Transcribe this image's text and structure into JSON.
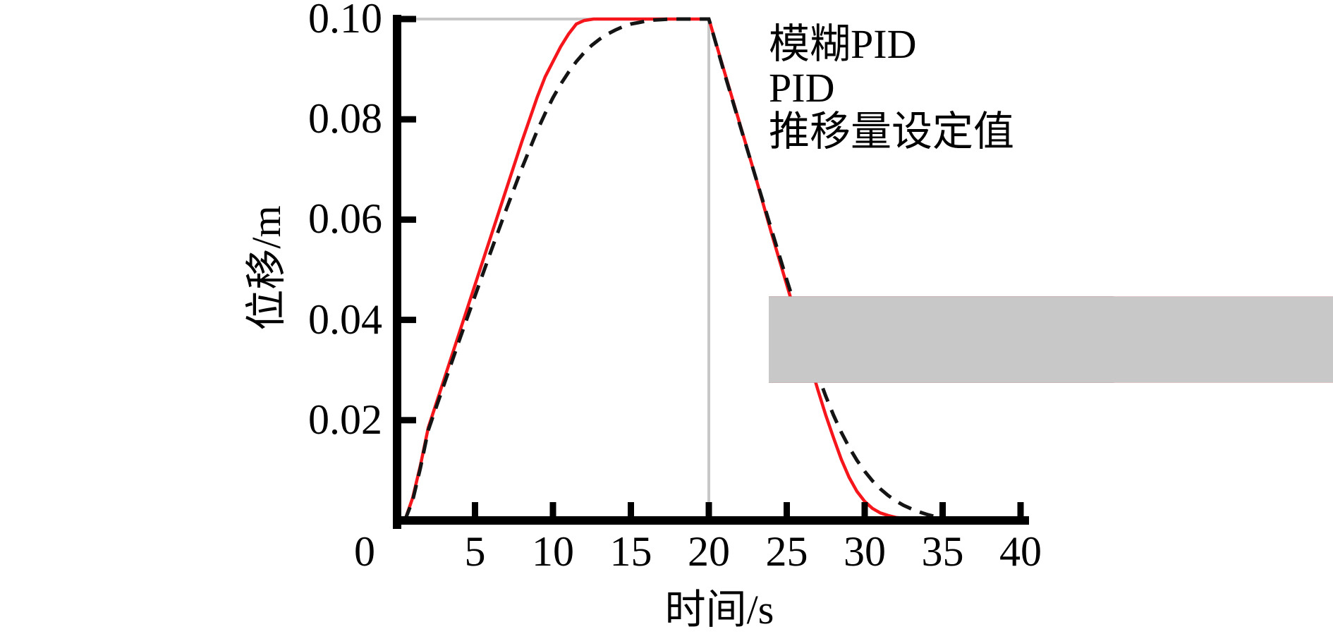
{
  "figure": {
    "background": "#ffffff",
    "text_color": "#000000"
  },
  "axes": {
    "x_title": "时间/s",
    "y_title": "位移/m",
    "x_ticks": [
      {
        "value": 0,
        "label": "0",
        "dx": -46
      },
      {
        "value": 5,
        "label": "5"
      },
      {
        "value": 10,
        "label": "10"
      },
      {
        "value": 15,
        "label": "15"
      },
      {
        "value": 20,
        "label": "20"
      },
      {
        "value": 25,
        "label": "25"
      },
      {
        "value": 30,
        "label": "30"
      },
      {
        "value": 35,
        "label": "35"
      },
      {
        "value": 40,
        "label": "40"
      }
    ],
    "y_ticks": [
      {
        "value": 0.02,
        "label": "0.02"
      },
      {
        "value": 0.04,
        "label": "0.04"
      },
      {
        "value": 0.06,
        "label": "0.06"
      },
      {
        "value": 0.08,
        "label": "0.08"
      },
      {
        "value": 0.1,
        "label": "0.10"
      }
    ]
  },
  "chart_data": {
    "type": "line",
    "title": "",
    "xlabel": "时间/s",
    "ylabel": "位移/m",
    "xlim": [
      0,
      40
    ],
    "ylim": [
      0,
      0.1
    ],
    "x_tick_values": [
      0,
      5,
      10,
      15,
      20,
      25,
      30,
      35,
      40
    ],
    "y_tick_values": [
      0.02,
      0.04,
      0.06,
      0.08,
      0.1
    ],
    "grid": false,
    "legend_position": "upper right",
    "series": [
      {
        "key": "fuzzy-pid",
        "name": "模糊PID",
        "color": "#f5151b",
        "style": "solid",
        "line_width": 4.5,
        "points": [
          [
            0.5,
            0
          ],
          [
            1,
            0.0045
          ],
          [
            1.5,
            0.011
          ],
          [
            2,
            0.0185
          ],
          [
            3,
            0.028
          ],
          [
            4,
            0.0375
          ],
          [
            5,
            0.047
          ],
          [
            6,
            0.0565
          ],
          [
            7,
            0.066
          ],
          [
            8,
            0.0755
          ],
          [
            9,
            0.0845
          ],
          [
            9.5,
            0.0885
          ],
          [
            10,
            0.0915
          ],
          [
            10.5,
            0.0945
          ],
          [
            11,
            0.097
          ],
          [
            11.5,
            0.099
          ],
          [
            12,
            0.0997
          ],
          [
            12.6,
            0.1
          ],
          [
            20,
            0.1
          ],
          [
            20.1,
            0.099
          ],
          [
            21,
            0.0895
          ],
          [
            22,
            0.079
          ],
          [
            23,
            0.0685
          ],
          [
            24,
            0.0575
          ],
          [
            25,
            0.047
          ],
          [
            26,
            0.0365
          ],
          [
            27,
            0.026
          ],
          [
            27.5,
            0.021
          ],
          [
            28,
            0.0165
          ],
          [
            28.5,
            0.0122
          ],
          [
            29,
            0.0086
          ],
          [
            29.5,
            0.0058
          ],
          [
            30,
            0.0038
          ],
          [
            30.5,
            0.0024
          ],
          [
            31,
            0.0015
          ],
          [
            31.5,
            0.001
          ],
          [
            32,
            0.0006
          ],
          [
            33,
            0.0003
          ],
          [
            34,
            0.0001
          ]
        ]
      },
      {
        "key": "pid",
        "name": "PID",
        "color": "#141414",
        "style": "dashed",
        "line_width": 5,
        "points": [
          [
            0.5,
            0
          ],
          [
            1,
            0.004
          ],
          [
            1.5,
            0.0105
          ],
          [
            2,
            0.018
          ],
          [
            3,
            0.027
          ],
          [
            4,
            0.036
          ],
          [
            5,
            0.0448
          ],
          [
            6,
            0.0535
          ],
          [
            7,
            0.062
          ],
          [
            8,
            0.0702
          ],
          [
            9,
            0.0778
          ],
          [
            9.5,
            0.0812
          ],
          [
            10,
            0.0843
          ],
          [
            10.5,
            0.087
          ],
          [
            11,
            0.0894
          ],
          [
            11.5,
            0.0915
          ],
          [
            12,
            0.0933
          ],
          [
            12.5,
            0.0948
          ],
          [
            13,
            0.096
          ],
          [
            13.5,
            0.097
          ],
          [
            14,
            0.0978
          ],
          [
            14.5,
            0.0985
          ],
          [
            15,
            0.099
          ],
          [
            15.5,
            0.0993
          ],
          [
            16,
            0.0996
          ],
          [
            16.5,
            0.0998
          ],
          [
            17,
            0.0999
          ],
          [
            17.5,
            0.1
          ],
          [
            20,
            0.1
          ],
          [
            20.1,
            0.099
          ],
          [
            21,
            0.0892
          ],
          [
            22,
            0.0788
          ],
          [
            23,
            0.0685
          ],
          [
            24,
            0.0582
          ],
          [
            25,
            0.048
          ],
          [
            26,
            0.0382
          ],
          [
            26.5,
            0.0335
          ],
          [
            27,
            0.029
          ],
          [
            27.5,
            0.0248
          ],
          [
            28,
            0.021
          ],
          [
            28.5,
            0.0176
          ],
          [
            29,
            0.0146
          ],
          [
            29.5,
            0.012
          ],
          [
            30,
            0.0098
          ],
          [
            30.5,
            0.0079
          ],
          [
            31,
            0.0063
          ],
          [
            31.5,
            0.005
          ],
          [
            32,
            0.0039
          ],
          [
            32.5,
            0.003
          ],
          [
            33,
            0.0023
          ],
          [
            33.5,
            0.0017
          ],
          [
            34,
            0.0012
          ],
          [
            34.5,
            0.0008
          ],
          [
            35,
            0.0005
          ],
          [
            35.5,
            0.0003
          ],
          [
            36,
            0.0002
          ]
        ]
      },
      {
        "key": "setpoint",
        "name": "推移量设定值",
        "color": "#c8c8c8",
        "style": "solid",
        "line_width": 4,
        "points": [
          [
            0,
            0.1
          ],
          [
            20,
            0.1
          ],
          [
            20,
            0
          ]
        ]
      }
    ]
  }
}
